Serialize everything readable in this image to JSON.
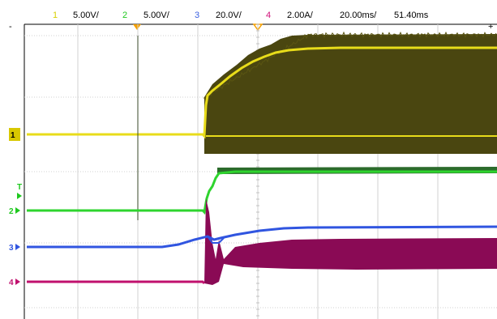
{
  "header": {
    "settings": [
      {
        "channel": "1",
        "value": "5.00V/",
        "color": "#f2e100"
      },
      {
        "channel": "2",
        "value": "5.00V/",
        "color": "#1ec81e"
      },
      {
        "channel": "3",
        "value": "20.0V/",
        "color": "#3a5fe0"
      },
      {
        "channel": "4",
        "value": "2.00A/",
        "color": "#d0107a"
      }
    ],
    "timebase": "20.00ms/",
    "delay": "51.40ms"
  },
  "trigger": {
    "marker_color": "#f5a000",
    "level_marker_color": "#f5a000"
  },
  "channels": [
    {
      "id": "ch1",
      "label": "1",
      "color": "#e8dc1a",
      "dark_fill": "#4a4610"
    },
    {
      "id": "ch2",
      "label": "2",
      "color": "#2ed42e"
    },
    {
      "id": "ch3",
      "label": "3",
      "color": "#3055e0"
    },
    {
      "id": "ch4",
      "label": "4",
      "color": "#c0106e"
    }
  ],
  "trigger_channel_label": "T",
  "colors": {
    "grid": "#c8c8c8",
    "background": "#ffffff",
    "header_text": "#000000"
  }
}
